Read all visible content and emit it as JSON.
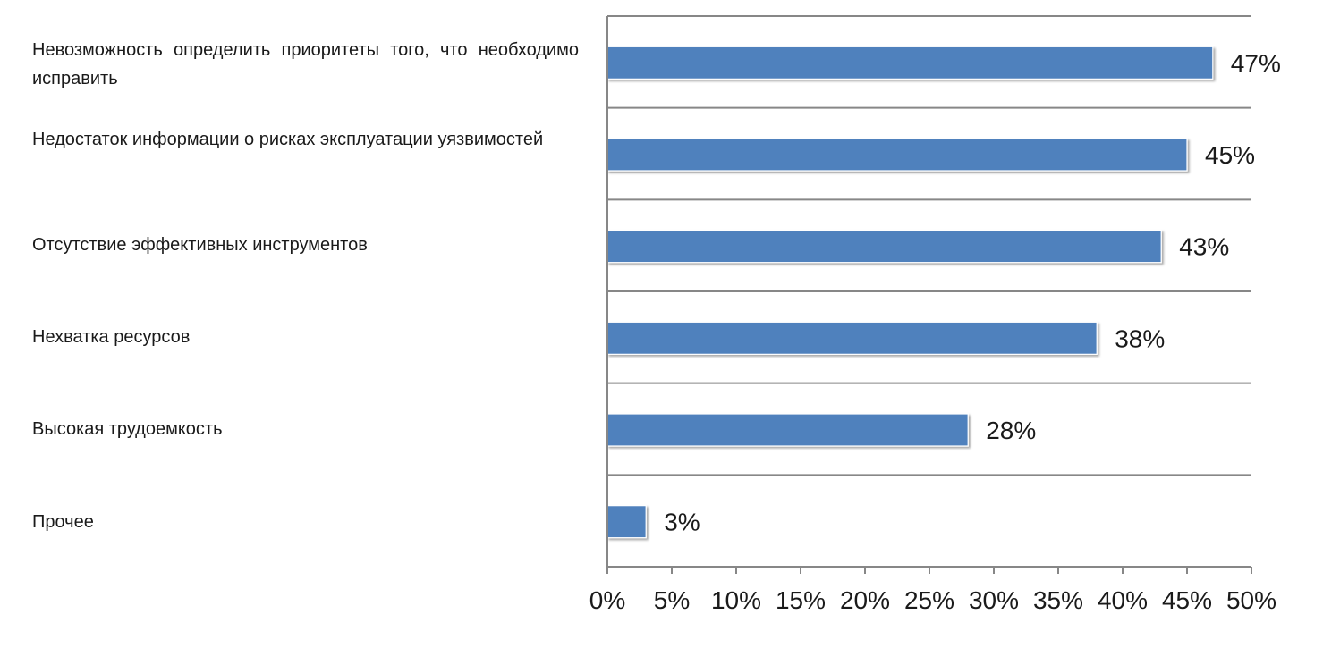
{
  "chart_data": {
    "type": "bar",
    "orientation": "horizontal",
    "categories": [
      "Невозможность определить приоритеты того, что необходимо исправить",
      "Недостаток информации о рисках эксплуатации уязвимостей",
      "Отсутствие эффективных инструментов",
      "Нехватка ресурсов",
      "Высокая трудоемкость",
      "Прочее"
    ],
    "values": [
      47,
      45,
      43,
      38,
      28,
      3
    ],
    "data_labels": [
      "47%",
      "45%",
      "43%",
      "38%",
      "28%",
      "3%"
    ],
    "title": "",
    "xlabel": "",
    "ylabel": "",
    "xlim": [
      0,
      50
    ],
    "x_ticks": [
      0,
      5,
      10,
      15,
      20,
      25,
      30,
      35,
      40,
      45,
      50
    ],
    "x_tick_labels": [
      "0%",
      "5%",
      "10%",
      "15%",
      "20%",
      "25%",
      "30%",
      "35%",
      "40%",
      "45%",
      "50%"
    ],
    "grid": "horizontal separators between categories",
    "legend": "none",
    "bar_color": "#4f81bd"
  }
}
